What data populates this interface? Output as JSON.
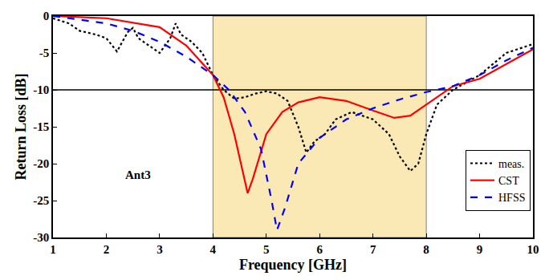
{
  "chart_data": {
    "type": "line",
    "x_label": "Frequency [GHz]",
    "y_label": "Return Loss [dB]",
    "xlim": [
      1,
      10
    ],
    "ylim": [
      -30,
      0
    ],
    "xticks": [
      1,
      2,
      3,
      4,
      5,
      6,
      7,
      8,
      9,
      10
    ],
    "yticks": [
      -30,
      -25,
      -20,
      -15,
      -10,
      -5,
      0
    ],
    "grid": false,
    "legend": "lower right",
    "shaded_band": [
      4,
      8
    ],
    "threshold": -10,
    "annotations": [
      {
        "text": "Ant3",
        "x": 2.6,
        "y": -21.5
      }
    ],
    "series": [
      {
        "name": "meas.",
        "color": "#000000",
        "line_style": "dotted",
        "x": [
          1,
          1.3,
          1.5,
          1.8,
          2.0,
          2.2,
          2.4,
          2.5,
          2.6,
          2.8,
          3.0,
          3.1,
          3.2,
          3.3,
          3.4,
          3.6,
          3.8,
          4.0,
          4.2,
          4.4,
          4.6,
          4.8,
          5.0,
          5.2,
          5.4,
          5.6,
          5.75,
          5.9,
          6.1,
          6.3,
          6.6,
          6.8,
          7.0,
          7.3,
          7.5,
          7.7,
          7.85,
          8.0,
          8.2,
          8.5,
          9.0,
          9.5,
          10
        ],
        "values": [
          -0.3,
          -1,
          -2,
          -2.5,
          -3,
          -4.8,
          -2.2,
          -1.6,
          -3,
          -4,
          -5,
          -4,
          -3,
          -1,
          -2.5,
          -3.5,
          -5,
          -8,
          -10,
          -11.2,
          -11,
          -10.5,
          -10.2,
          -10.5,
          -11.5,
          -15,
          -18.5,
          -17,
          -16,
          -14,
          -13,
          -13.5,
          -14,
          -16,
          -19,
          -21,
          -20,
          -16,
          -12,
          -10,
          -8,
          -5,
          -3.8
        ]
      },
      {
        "name": "CST",
        "color": "#ff0000",
        "line_style": "solid",
        "x": [
          1,
          2,
          3,
          3.5,
          4.0,
          4.2,
          4.4,
          4.55,
          4.65,
          4.75,
          5.0,
          5.3,
          5.6,
          6.0,
          6.5,
          7.0,
          7.4,
          7.7,
          8.0,
          8.5,
          9.0,
          9.5,
          10
        ],
        "values": [
          0,
          -0.3,
          -1.5,
          -4,
          -8,
          -11,
          -16,
          -21,
          -24,
          -22,
          -16,
          -13,
          -11.7,
          -11,
          -11.5,
          -12.8,
          -13.8,
          -13.5,
          -12,
          -9.5,
          -8.5,
          -6.5,
          -4.5
        ]
      },
      {
        "name": "HFSS",
        "color": "#0000ff",
        "line_style": "dashed",
        "x": [
          1,
          1.5,
          2,
          2.5,
          3,
          3.5,
          4.0,
          4.3,
          4.6,
          4.9,
          5.1,
          5.2,
          5.35,
          5.6,
          6.0,
          6.5,
          7.0,
          7.5,
          8.0,
          8.5,
          9.0,
          9.5,
          10
        ],
        "values": [
          0,
          -0.5,
          -1,
          -2,
          -3.5,
          -5.5,
          -8,
          -10,
          -13,
          -18,
          -25,
          -29,
          -26,
          -20,
          -16.5,
          -14,
          -12.5,
          -11.3,
          -10.3,
          -9.5,
          -8,
          -6,
          -4.3
        ]
      }
    ]
  }
}
